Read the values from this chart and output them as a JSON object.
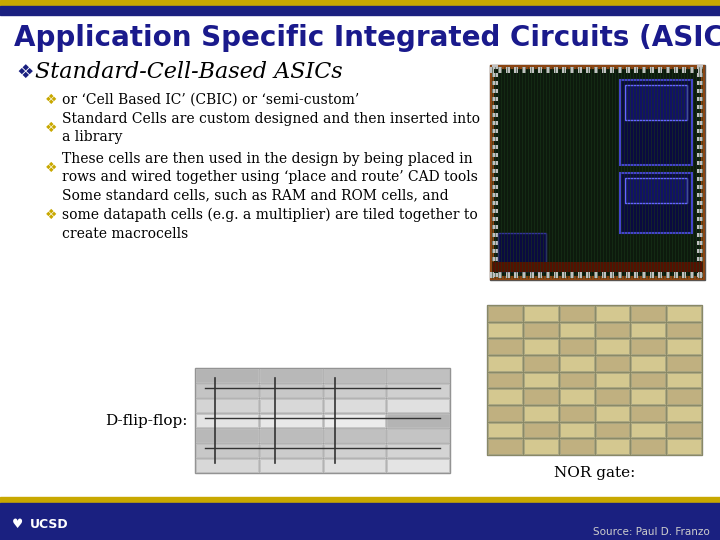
{
  "title": "Application Specific Integrated Circuits (ASICs)",
  "title_color": "#1a1a8c",
  "title_fontsize": 20,
  "bg_color": "#ffffff",
  "header_gold_color": "#c8a800",
  "header_navy_color": "#1a2080",
  "bullet1": "Standard-Cell-Based ASICs",
  "bullet1_fontsize": 16,
  "bullet1_color": "#000000",
  "bullet1_symbol": "❖",
  "bullet1_symbol_color": "#1a2080",
  "sub_bullets": [
    "or ‘Cell Based IC’ (CBIC) or ‘semi-custom’",
    "Standard Cells are custom designed and then inserted into\na library",
    "These cells are then used in the design by being placed in\nrows and wired together using ‘place and route’ CAD tools",
    "Some standard cells, such as RAM and ROM cells, and\nsome datapath cells (e.g. a multiplier) are tiled together to\ncreate macrocells"
  ],
  "sub_bullet_fontsize": 10,
  "sub_bullet_color": "#000000",
  "sub_bullet_symbol": "❖",
  "sub_bullet_symbol_color": "#c8a800",
  "label_dflipflop": "D-flip-flop:",
  "label_norgate": "NOR gate:",
  "label_fontsize": 11,
  "label_color": "#000000",
  "source_text": "Source: Paul D. Franzo",
  "source_fontsize": 7.5,
  "ucsd_text": "UCSD",
  "ucsd_fontsize": 9
}
